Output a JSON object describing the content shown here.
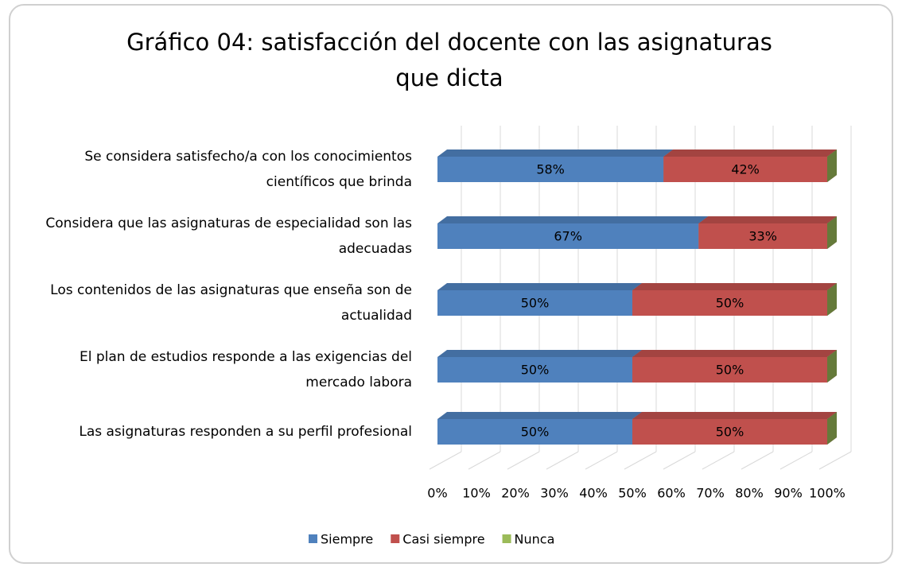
{
  "chart_data": {
    "type": "bar",
    "orientation": "horizontal",
    "stacked": true,
    "title": "Gráfico 04: satisfacción del docente con las asignaturas que dicta",
    "categories": [
      "Se considera satisfecho/a con los conocimientos científicos que brinda",
      "Considera que las asignaturas de especialidad son las adecuadas",
      "Los contenidos de las asignaturas que enseña son de actualidad",
      "El plan de estudios responde a las exigencias del mercado labora",
      "Las asignaturas responden a su perfil profesional"
    ],
    "series": [
      {
        "name": "Siempre",
        "color": "#4f81bd",
        "values": [
          58,
          67,
          50,
          50,
          50
        ],
        "value_labels": [
          "58%",
          "67%",
          "50%",
          "50%",
          "50%"
        ]
      },
      {
        "name": "Casi siempre",
        "color": "#c0504d",
        "values": [
          42,
          33,
          50,
          50,
          50
        ],
        "value_labels": [
          "42%",
          "33%",
          "50%",
          "50%",
          "50%"
        ]
      },
      {
        "name": "Nunca",
        "color": "#9bbb59",
        "values": [
          0,
          0,
          0,
          0,
          0
        ]
      }
    ],
    "xlim": [
      0,
      100
    ],
    "xticks": [
      {
        "value": 0,
        "label": "0%"
      },
      {
        "value": 10,
        "label": "10%"
      },
      {
        "value": 20,
        "label": "20%"
      },
      {
        "value": 30,
        "label": "30%"
      },
      {
        "value": 40,
        "label": "40%"
      },
      {
        "value": 50,
        "label": "50%"
      },
      {
        "value": 60,
        "label": "60%"
      },
      {
        "value": 70,
        "label": "70%"
      },
      {
        "value": 80,
        "label": "80%"
      },
      {
        "value": 90,
        "label": "90%"
      },
      {
        "value": 100,
        "label": "100%"
      }
    ],
    "grid": true,
    "legend": "bottom"
  }
}
